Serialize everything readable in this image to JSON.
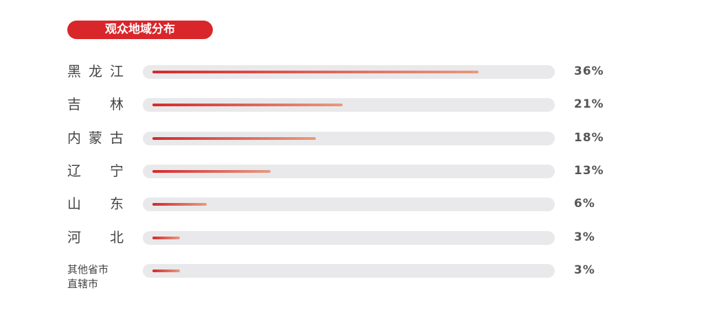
{
  "chart_data": {
    "type": "bar",
    "orientation": "horizontal",
    "title": "观众地域分布",
    "categories": [
      "黑龙江",
      "吉林",
      "内蒙古",
      "辽宁",
      "山东",
      "河北",
      "其他省市\n直辖市"
    ],
    "values": [
      36,
      21,
      18,
      13,
      6,
      3,
      3
    ],
    "value_labels": [
      "36%",
      "21%",
      "18%",
      "13%",
      "6%",
      "3%",
      "3%"
    ],
    "color": "#d42a2c"
  }
}
